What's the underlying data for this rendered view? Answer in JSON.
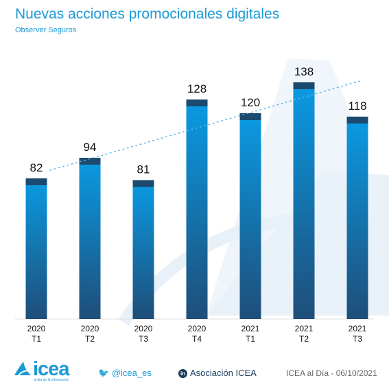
{
  "title": "Nuevas acciones promocionales digitales",
  "subtitle": "Observer Seguros",
  "chart_data": {
    "type": "bar",
    "categories": [
      [
        "2020",
        "T1"
      ],
      [
        "2020",
        "T2"
      ],
      [
        "2020",
        "T3"
      ],
      [
        "2020",
        "T4"
      ],
      [
        "2021",
        "T1"
      ],
      [
        "2021",
        "T2"
      ],
      [
        "2021",
        "T3"
      ]
    ],
    "values": [
      82,
      94,
      81,
      128,
      120,
      138,
      118
    ],
    "trendline": "linear",
    "colors": {
      "bar_top": "#0a9be4",
      "bar_bottom": "#1f4e79",
      "cap": "#1c4a6e",
      "trend": "#5ab4e3"
    }
  },
  "footer": {
    "logo": "icea",
    "logo_sub": "al día de la información",
    "twitter": "@icea_es",
    "linkedin": "Asociación ICEA",
    "date": "ICEA al Día - 06/10/2021"
  }
}
